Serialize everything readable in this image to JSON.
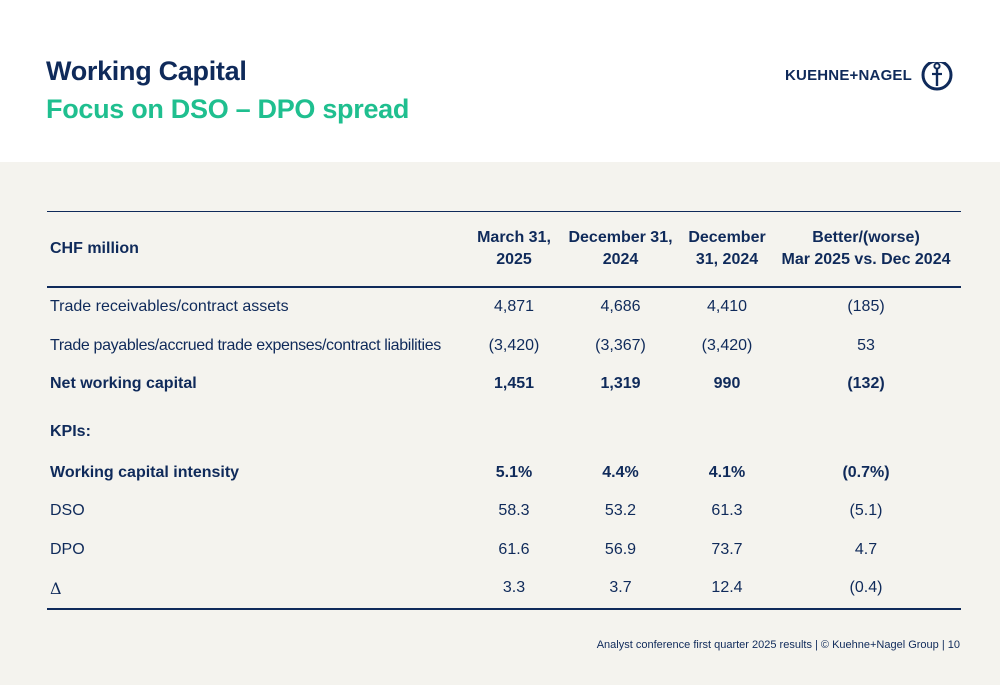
{
  "header": {
    "title": "Working Capital",
    "subtitle": "Focus on DSO – DPO spread",
    "logo_text": "KUEHNE+NAGEL"
  },
  "table": {
    "columns": [
      "CHF million",
      "March 31,\n2025",
      "December 31,\n2024",
      "December\n31, 2024",
      "Better/(worse)\nMar 2025 vs. Dec 2024"
    ],
    "rows": [
      {
        "label": "Trade receivables/contract assets",
        "v1": "4,871",
        "v2": "4,686",
        "v3": "4,410",
        "v4": "(185)"
      },
      {
        "label": "Trade payables/accrued trade expenses/contract liabilities",
        "v1": "(3,420)",
        "v2": "(3,367)",
        "v3": "(3,420)",
        "v4": "53"
      },
      {
        "label": "Net working capital",
        "v1": "1,451",
        "v2": "1,319",
        "v3": "990",
        "v4": "(132)"
      }
    ],
    "kpi_label": "KPIs:",
    "kpi_rows": [
      {
        "label": "Working capital intensity",
        "v1": "5.1%",
        "v2": "4.4%",
        "v3": "4.1%",
        "v4": "(0.7%)"
      },
      {
        "label": "DSO",
        "v1": "58.3",
        "v2": "53.2",
        "v3": "61.3",
        "v4": "(5.1)"
      },
      {
        "label": "DPO",
        "v1": "61.6",
        "v2": "56.9",
        "v3": "73.7",
        "v4": "4.7"
      },
      {
        "label": "Δ",
        "v1": "3.3",
        "v2": "3.7",
        "v3": "12.4",
        "v4": "(0.4)"
      }
    ]
  },
  "footer": {
    "text": "Analyst conference first quarter 2025 results | © Kuehne+Nagel Group | 10"
  },
  "colors": {
    "navy": "#0f2a5a",
    "green": "#1fbf8f",
    "panel": "#f4f3ee"
  },
  "icons": [
    "anchor-logo-icon"
  ]
}
